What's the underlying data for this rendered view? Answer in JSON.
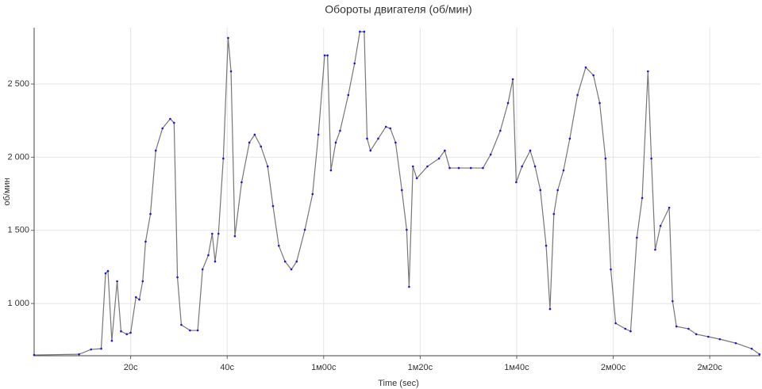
{
  "chart_data": {
    "type": "line",
    "title": "Обороты двигателя (об/мин)",
    "x_label": "Time (sec)",
    "y_label": "об/мин",
    "x": [
      0,
      9.3,
      11.8,
      13.9,
      14.8,
      15.3,
      16.1,
      17.2,
      18,
      19.2,
      20,
      21.1,
      21.8,
      22.5,
      23.1,
      24.1,
      25.2,
      26.6,
      28.2,
      29,
      29.7,
      30.5,
      32.3,
      33.9,
      34.9,
      36.1,
      36.9,
      37.5,
      38.2,
      39.2,
      40.2,
      40.8,
      41.6,
      43,
      44.6,
      45.7,
      47,
      48.4,
      49.5,
      50.7,
      52,
      53.3,
      54.4,
      56.1,
      57.7,
      58.9,
      60.2,
      60.8,
      61.5,
      62.5,
      63.4,
      65.1,
      66.4,
      67.5,
      68.4,
      69,
      69.7,
      71.3,
      72.9,
      73.8,
      74.9,
      76.2,
      77.2,
      77.7,
      78.5,
      79.3,
      81.5,
      83.9,
      85.1,
      86.1,
      88,
      90.5,
      93,
      94.6,
      96.6,
      98.2,
      99.2,
      99.9,
      101.1,
      102.8,
      103.8,
      104.9,
      106.1,
      106.9,
      107.7,
      108.5,
      109.7,
      111,
      112.6,
      114.3,
      115.9,
      117.2,
      118.4,
      119.5,
      120.5,
      122.5,
      123.6,
      124.9,
      126,
      127.2,
      127.9,
      128.7,
      129.8,
      131.6,
      132.3,
      133.1,
      135.6,
      137.2,
      139.7,
      142.1,
      145.4,
      148.7,
      150.3
    ],
    "series": [
      {
        "name": "об/мин",
        "color": "#1a1acc",
        "line_color": "#777777",
        "values": [
          648,
          653,
          686,
          691,
          1206,
          1222,
          745,
          1152,
          810,
          790,
          800,
          1043,
          1027,
          1152,
          1423,
          1612,
          2045,
          2197,
          2262,
          2235,
          1179,
          854,
          816,
          816,
          1233,
          1330,
          1477,
          1287,
          1477,
          1991,
          2815,
          2587,
          1460,
          1829,
          2100,
          2154,
          2073,
          1937,
          1666,
          1395,
          1287,
          1233,
          1287,
          1504,
          1748,
          2154,
          2696,
          2696,
          1910,
          2100,
          2181,
          2425,
          2641,
          2858,
          2858,
          2127,
          2045,
          2127,
          2208,
          2197,
          2100,
          1775,
          1504,
          1114,
          1937,
          1856,
          1937,
          1991,
          2045,
          1926,
          1926,
          1926,
          1926,
          2018,
          2181,
          2370,
          2533,
          1829,
          1937,
          2045,
          1937,
          1775,
          1395,
          962,
          1612,
          1775,
          1910,
          2127,
          2425,
          2614,
          2560,
          2370,
          1991,
          1233,
          865,
          827,
          810,
          1450,
          1721,
          2587,
          1991,
          1368,
          1531,
          1655,
          1016,
          843,
          827,
          790,
          773,
          756,
          729,
          691,
          653
        ]
      }
    ],
    "xlim": [
      0,
      150.5
    ],
    "ylim": [
      643,
      2885
    ],
    "xticks": [
      {
        "value": 20,
        "label": "20c"
      },
      {
        "value": 40,
        "label": "40c"
      },
      {
        "value": 60,
        "label": "1м00c"
      },
      {
        "value": 80,
        "label": "1м20c"
      },
      {
        "value": 100,
        "label": "1м40c"
      },
      {
        "value": 120,
        "label": "2м00c"
      },
      {
        "value": 140,
        "label": "2м20c"
      }
    ],
    "yticks": [
      {
        "value": 1000,
        "label": "1 000"
      },
      {
        "value": 1500,
        "label": "1 500"
      },
      {
        "value": 2000,
        "label": "2 000"
      },
      {
        "value": 2500,
        "label": "2 500"
      }
    ],
    "grid": true
  }
}
